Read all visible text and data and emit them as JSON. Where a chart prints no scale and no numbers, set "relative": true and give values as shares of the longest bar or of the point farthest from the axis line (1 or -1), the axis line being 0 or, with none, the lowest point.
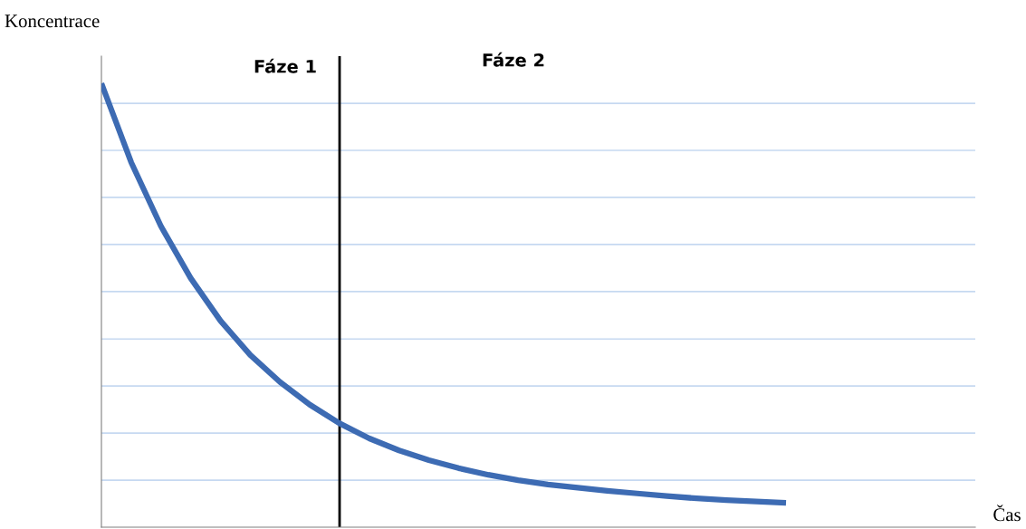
{
  "chart_data": {
    "type": "line",
    "relative": true,
    "ylabel": "Koncentrace",
    "annotations": [
      "Fáze 1",
      "Fáze 2",
      "Čas"
    ],
    "categories": [
      null,
      null,
      null,
      null,
      null,
      null,
      null,
      null,
      null,
      null,
      null,
      null,
      null,
      null,
      null,
      null,
      null,
      null,
      null,
      null,
      null,
      null,
      null,
      null
    ],
    "series": [
      {
        "color": "#3d6bb3",
        "values": [
          1.0,
          0.822,
          0.678,
          0.561,
          0.465,
          0.388,
          0.327,
          0.276,
          0.234,
          0.2,
          0.173,
          0.151,
          0.133,
          0.118,
          0.106,
          0.096,
          0.089,
          0.082,
          0.076,
          0.07,
          0.065,
          0.061,
          0.058,
          0.055
        ]
      }
    ],
    "ref_lines": [
      {
        "axis": "y",
        "value": 0.106,
        "color": "#c6d9f1"
      },
      {
        "axis": "y",
        "value": 0.212,
        "color": "#c6d9f1"
      },
      {
        "axis": "y",
        "value": 0.318,
        "color": "#c6d9f1"
      },
      {
        "axis": "y",
        "value": 0.424,
        "color": "#c6d9f1"
      },
      {
        "axis": "y",
        "value": 0.531,
        "color": "#c6d9f1"
      },
      {
        "axis": "y",
        "value": 0.637,
        "color": "#c6d9f1"
      },
      {
        "axis": "y",
        "value": 0.743,
        "color": "#c6d9f1"
      },
      {
        "axis": "y",
        "value": 0.849,
        "color": "#c6d9f1"
      },
      {
        "axis": "y",
        "value": 0.955,
        "color": "#c6d9f1"
      }
    ]
  }
}
